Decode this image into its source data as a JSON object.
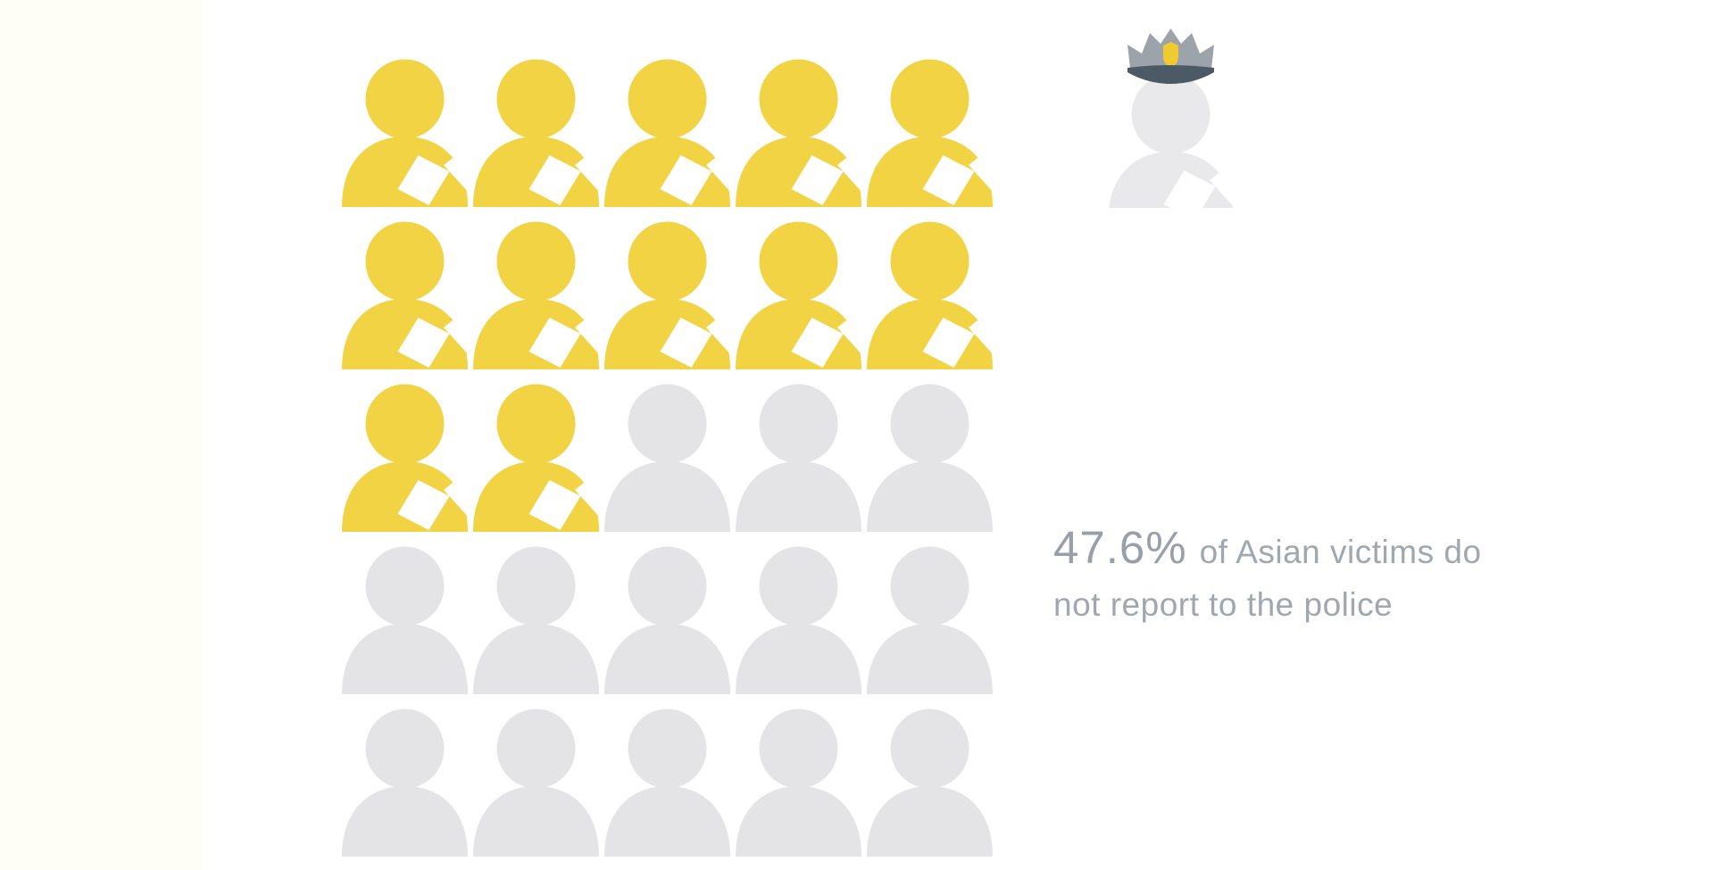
{
  "stat": {
    "value": "47.6%",
    "line1_rest": "of Asian victims do",
    "line2": "not report to the police",
    "full_text": "47.6% of Asian victims do not report to the police"
  },
  "grid": {
    "rows": 5,
    "cols": 5,
    "total": 25,
    "highlighted": 12
  },
  "icons": {
    "highlighted_person": "person-with-report-paper-icon",
    "muted_person": "person-icon",
    "officer": "police-officer-icon"
  },
  "colors": {
    "highlight": "#F1D344",
    "muted": "#E4E4E6",
    "officer_body": "#E9E9EB",
    "paper": "#FFFFFF",
    "cap_gray": "#9CA3AA",
    "cap_visor": "#4C5A66",
    "badge_yellow": "#EFCB2F",
    "stat_number": "#97A0A8",
    "stat_text": "#A0A8AF",
    "background": "#FFFFFF",
    "left_band": "#FFFEF6"
  },
  "chart_data": {
    "type": "pictogram",
    "title": "",
    "annotation": "47.6% of Asian victims do not report to the police",
    "value_percent": 47.6,
    "total_icons": 25,
    "highlighted_icons": 12,
    "grid": {
      "rows": 5,
      "cols": 5,
      "fill_order": "row-major from top-left"
    },
    "highlight_meaning": "Asian victims who do not report to the police",
    "muted_meaning": "remaining share of victims",
    "reference_icon": "police officer (top right)",
    "legend_position": "none",
    "colors": {
      "highlighted": "#F1D344",
      "unhighlighted": "#E4E4E6"
    }
  }
}
